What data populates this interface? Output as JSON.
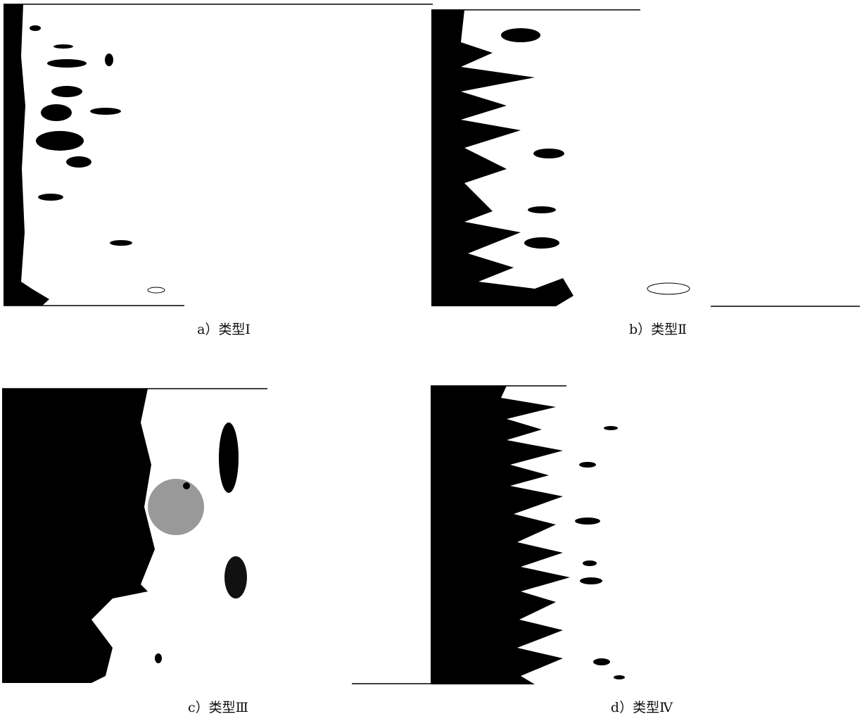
{
  "figure": {
    "captions": [
      "a）类型Ⅰ",
      "b）类型Ⅱ",
      "c）类型Ⅲ",
      "d）类型Ⅳ"
    ]
  }
}
